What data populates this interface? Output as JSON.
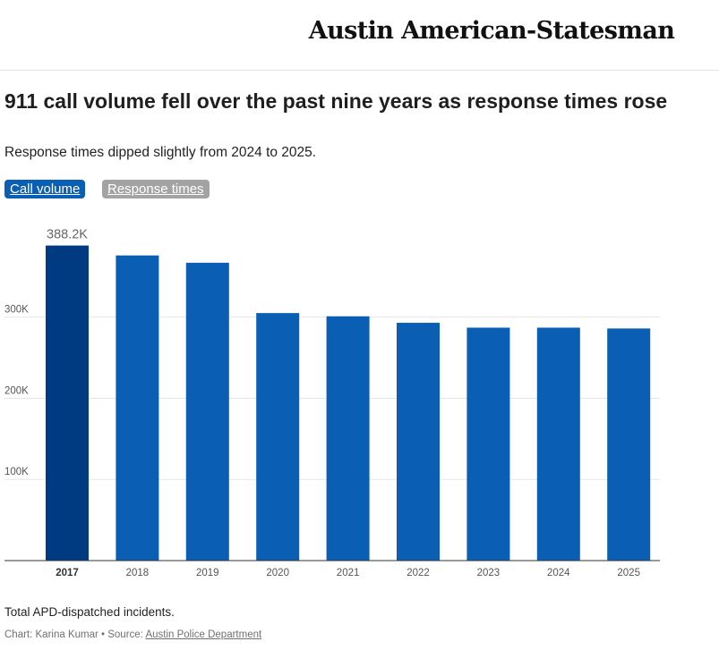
{
  "masthead": {
    "logo_text": "Austin American-Statesman"
  },
  "header": {
    "title": "911 call volume fell over the past nine years as response times rose",
    "subtitle": "Response times dipped slightly from 2024 to 2025."
  },
  "toggles": [
    {
      "label": "Call volume",
      "active": true,
      "color": "#0a5fb4"
    },
    {
      "label": "Response times",
      "active": false,
      "color": "#a3a3a3"
    }
  ],
  "chart_data": {
    "type": "bar",
    "categories": [
      "2017",
      "2018",
      "2019",
      "2020",
      "2021",
      "2022",
      "2023",
      "2024",
      "2025"
    ],
    "values": [
      388200,
      376000,
      367000,
      305000,
      301000,
      293000,
      287000,
      287000,
      286000
    ],
    "highlight_index": 0,
    "highlight_label": "388.2K",
    "ylim": [
      0,
      400000
    ],
    "yticks": [
      {
        "value": 100000,
        "label": "100K"
      },
      {
        "value": 200000,
        "label": "200K"
      },
      {
        "value": 300000,
        "label": "300K"
      }
    ],
    "grid": true,
    "colors": {
      "bar": "#0a5fb4",
      "highlight": "#003a80",
      "grid": "#e6e6e6",
      "axis": "#333333"
    }
  },
  "footer": {
    "note": "Total APD-dispatched incidents.",
    "credit_prefix": "Chart: Karina Kumar • Source: ",
    "source_link": "Austin Police Department"
  }
}
